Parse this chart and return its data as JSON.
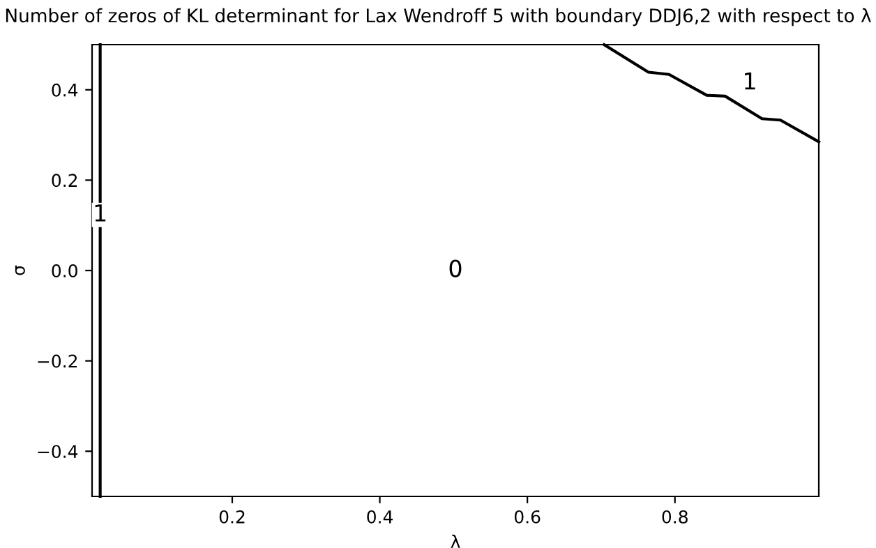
{
  "chart_data": {
    "type": "line",
    "title": "Number of zeros of KL determinant for Lax Wendroff 5 with boundary DDJ6,2 with respect to λ",
    "xlabel": "λ",
    "ylabel": "σ",
    "series": [
      {
        "color": "#000000",
        "x": [
          0.021,
          0.021
        ],
        "values": [
          -0.5,
          0.5
        ]
      },
      {
        "color": "#000000",
        "x": [
          0.704,
          0.764,
          0.792,
          0.843,
          0.868,
          0.918,
          0.943,
          0.995
        ],
        "values": [
          0.5,
          0.439,
          0.434,
          0.388,
          0.386,
          0.336,
          0.333,
          0.285
        ]
      }
    ],
    "annotations": [
      {
        "text": "1",
        "x": 0.021,
        "y": 0.123
      },
      "0",
      "1"
    ],
    "xlim": [
      0.01,
      0.995
    ],
    "ylim": [
      -0.5,
      0.5
    ],
    "xticks": [
      {
        "value": 0.2,
        "label": "0.2"
      },
      {
        "value": 0.4,
        "label": "0.4"
      },
      {
        "value": 0.6,
        "label": "0.6"
      },
      {
        "value": 0.8,
        "label": "0.8"
      }
    ],
    "yticks": [
      {
        "value": -0.4,
        "label": "−0.4"
      },
      {
        "value": -0.2,
        "label": "−0.2"
      },
      {
        "value": 0,
        "label": "0.0"
      },
      {
        "value": 0.2,
        "label": "0.2"
      },
      {
        "value": 0.4,
        "label": "0.4"
      }
    ],
    "grid": false,
    "legend": false,
    "marker": "none",
    "line_style": "solid"
  }
}
